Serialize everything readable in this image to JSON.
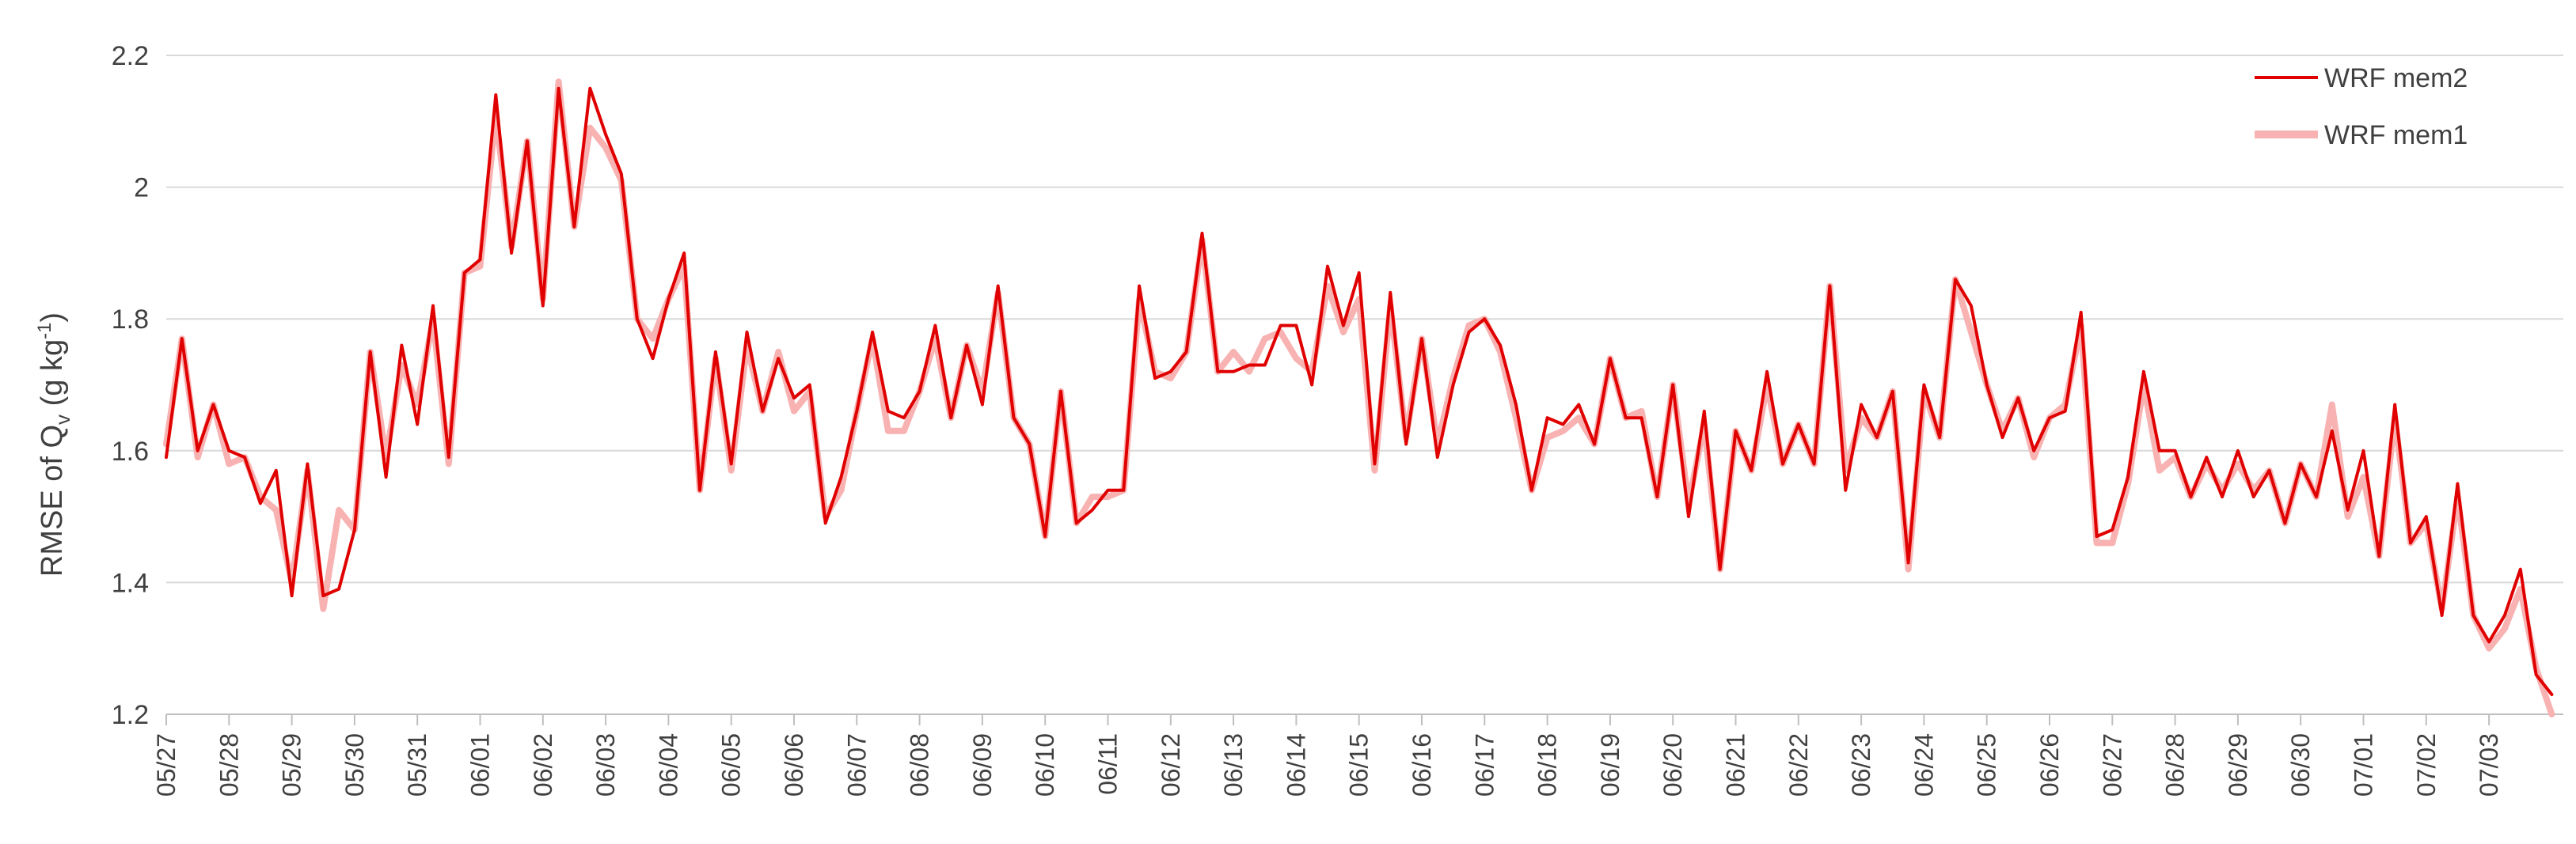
{
  "chart_data": {
    "type": "line",
    "ylabel": {
      "main": "RMSE of Q",
      "sub": "v",
      "unit_open": " (g kg",
      "sup": "-1",
      "unit_close": ")"
    },
    "xlabel": "",
    "ylim": [
      1.2,
      2.2
    ],
    "yticks": [
      "1.2",
      "1.4",
      "1.6",
      "1.8",
      "2",
      "2.2"
    ],
    "grid": true,
    "legend_position": "top-right",
    "x_start": "05/27",
    "steps_per_day": 4,
    "xtick_labels": [
      "05/27",
      "05/28",
      "05/29",
      "05/30",
      "05/31",
      "06/01",
      "06/02",
      "06/03",
      "06/04",
      "06/05",
      "06/06",
      "06/07",
      "06/08",
      "06/09",
      "06/10",
      "06/11",
      "06/12",
      "06/13",
      "06/14",
      "06/15",
      "06/16",
      "06/17",
      "06/18",
      "06/19",
      "06/20",
      "06/21",
      "06/22",
      "06/23",
      "06/24",
      "06/25",
      "06/26",
      "06/27",
      "06/28",
      "06/29",
      "06/30",
      "07/01",
      "07/02",
      "07/03"
    ],
    "series": [
      {
        "name": "WRF mem2",
        "color": "#e00000",
        "values": [
          1.59,
          1.77,
          1.6,
          1.67,
          1.6,
          1.59,
          1.52,
          1.57,
          1.38,
          1.58,
          1.38,
          1.39,
          1.48,
          1.75,
          1.56,
          1.76,
          1.64,
          1.82,
          1.59,
          1.87,
          1.89,
          2.14,
          1.9,
          2.07,
          1.82,
          2.15,
          1.94,
          2.15,
          2.08,
          2.02,
          1.8,
          1.74,
          1.83,
          1.9,
          1.54,
          1.75,
          1.58,
          1.78,
          1.66,
          1.74,
          1.68,
          1.7,
          1.49,
          1.56,
          1.66,
          1.78,
          1.66,
          1.65,
          1.69,
          1.79,
          1.65,
          1.76,
          1.67,
          1.85,
          1.65,
          1.61,
          1.47,
          1.69,
          1.49,
          1.51,
          1.54,
          1.54,
          1.85,
          1.71,
          1.72,
          1.75,
          1.93,
          1.72,
          1.72,
          1.73,
          1.73,
          1.79,
          1.79,
          1.7,
          1.88,
          1.79,
          1.87,
          1.58,
          1.84,
          1.61,
          1.77,
          1.59,
          1.7,
          1.78,
          1.8,
          1.76,
          1.67,
          1.54,
          1.65,
          1.64,
          1.67,
          1.61,
          1.74,
          1.65,
          1.65,
          1.53,
          1.7,
          1.5,
          1.66,
          1.42,
          1.63,
          1.57,
          1.72,
          1.58,
          1.64,
          1.58,
          1.85,
          1.54,
          1.67,
          1.62,
          1.69,
          1.43,
          1.7,
          1.62,
          1.86,
          1.82,
          1.7,
          1.62,
          1.68,
          1.6,
          1.65,
          1.66,
          1.81,
          1.47,
          1.48,
          1.56,
          1.72,
          1.6,
          1.6,
          1.53,
          1.59,
          1.53,
          1.6,
          1.53,
          1.57,
          1.49,
          1.58,
          1.53,
          1.63,
          1.51,
          1.6,
          1.44,
          1.67,
          1.46,
          1.5,
          1.35,
          1.55,
          1.35,
          1.31,
          1.35,
          1.42,
          1.26,
          1.23
        ]
      },
      {
        "name": "WRF mem1",
        "color": "#f8b2b2",
        "values": [
          1.61,
          1.77,
          1.59,
          1.67,
          1.58,
          1.59,
          1.53,
          1.51,
          1.4,
          1.57,
          1.36,
          1.51,
          1.48,
          1.75,
          1.59,
          1.73,
          1.67,
          1.8,
          1.58,
          1.87,
          1.88,
          2.11,
          1.91,
          2.07,
          1.83,
          2.16,
          1.94,
          2.09,
          2.06,
          2.01,
          1.8,
          1.77,
          1.83,
          1.88,
          1.54,
          1.74,
          1.57,
          1.76,
          1.66,
          1.75,
          1.66,
          1.69,
          1.5,
          1.54,
          1.66,
          1.77,
          1.63,
          1.63,
          1.69,
          1.77,
          1.65,
          1.76,
          1.69,
          1.84,
          1.65,
          1.61,
          1.47,
          1.69,
          1.49,
          1.53,
          1.53,
          1.54,
          1.83,
          1.72,
          1.71,
          1.75,
          1.92,
          1.72,
          1.75,
          1.72,
          1.77,
          1.78,
          1.74,
          1.72,
          1.85,
          1.78,
          1.83,
          1.57,
          1.82,
          1.62,
          1.77,
          1.61,
          1.71,
          1.79,
          1.8,
          1.75,
          1.65,
          1.54,
          1.62,
          1.63,
          1.65,
          1.61,
          1.74,
          1.65,
          1.66,
          1.53,
          1.7,
          1.52,
          1.64,
          1.42,
          1.63,
          1.57,
          1.7,
          1.58,
          1.64,
          1.58,
          1.85,
          1.57,
          1.65,
          1.62,
          1.69,
          1.42,
          1.69,
          1.62,
          1.86,
          1.78,
          1.7,
          1.63,
          1.68,
          1.59,
          1.65,
          1.67,
          1.79,
          1.46,
          1.46,
          1.55,
          1.7,
          1.57,
          1.59,
          1.53,
          1.58,
          1.54,
          1.58,
          1.54,
          1.57,
          1.49,
          1.58,
          1.53,
          1.67,
          1.5,
          1.56,
          1.44,
          1.65,
          1.46,
          1.49,
          1.36,
          1.53,
          1.35,
          1.3,
          1.33,
          1.39,
          1.27,
          1.2
        ]
      }
    ]
  }
}
